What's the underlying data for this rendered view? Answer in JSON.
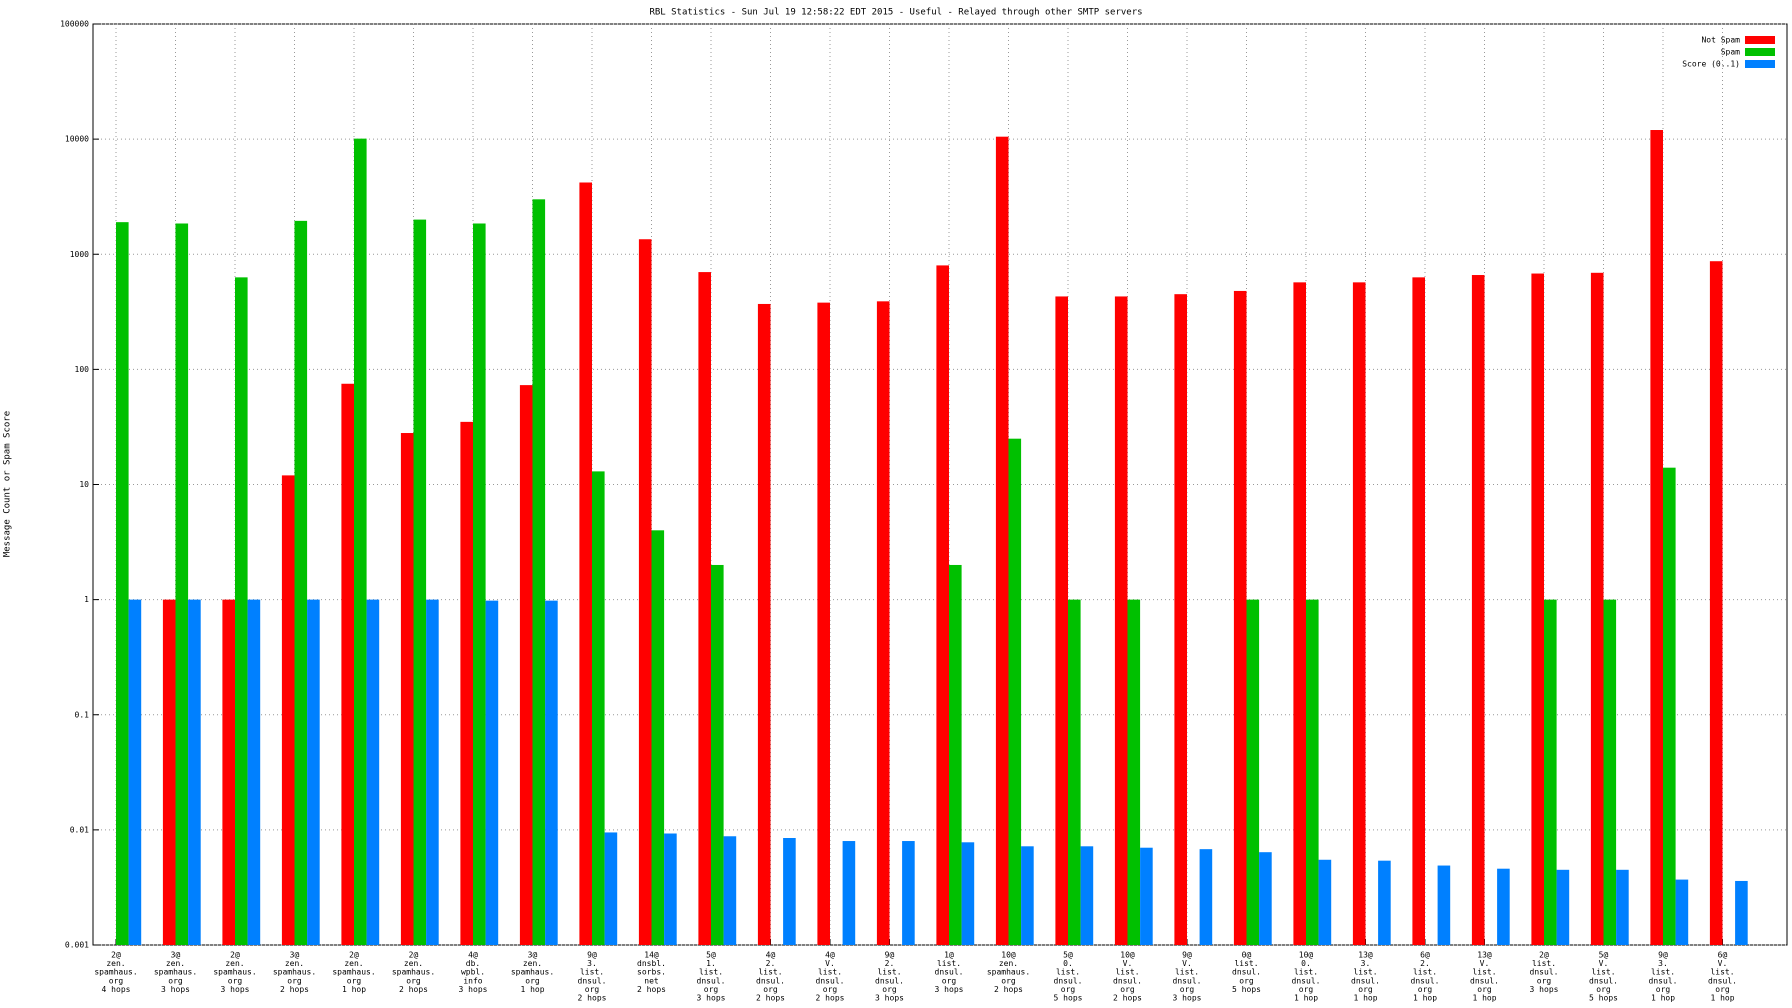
{
  "chart_data": {
    "type": "bar",
    "title": "RBL Statistics - Sun Jul 19 12:58:22 EDT 2015 - Useful - Relayed through other SMTP servers",
    "y_label": "Message Count or Spam Score",
    "log": true,
    "grid": true,
    "legend": "top-right",
    "ylim": [
      0.001,
      100000
    ],
    "yticks": [
      0.001,
      0.01,
      0.1,
      1,
      10,
      100,
      1000,
      10000,
      100000
    ],
    "categories": [
      [
        "2@",
        "zen.",
        "spamhaus.",
        "org",
        "4 hops"
      ],
      [
        "3@",
        "zen.",
        "spamhaus.",
        "org",
        "3 hops"
      ],
      [
        "2@",
        "zen.",
        "spamhaus.",
        "org",
        "3 hops"
      ],
      [
        "3@",
        "zen.",
        "spamhaus.",
        "org",
        "2 hops"
      ],
      [
        "2@",
        "zen.",
        "spamhaus.",
        "org",
        "1 hop"
      ],
      [
        "2@",
        "zen.",
        "spamhaus.",
        "org",
        "2 hops"
      ],
      [
        "4@",
        "db.",
        "wpbl.",
        "info",
        "3 hops"
      ],
      [
        "3@",
        "zen.",
        "spamhaus.",
        "org",
        "1 hop"
      ],
      [
        "9@",
        "3.",
        "list.",
        "dnsul.",
        "org",
        "2 hops"
      ],
      [
        "14@",
        "dnsbl.",
        "sorbs.",
        "net",
        "2 hops"
      ],
      [
        "5@",
        "1.",
        "list.",
        "dnsul.",
        "org",
        "3 hops"
      ],
      [
        "4@",
        "2.",
        "list.",
        "dnsul.",
        "org",
        "2 hops"
      ],
      [
        "4@",
        "V.",
        "list.",
        "dnsul.",
        "org",
        "2 hops"
      ],
      [
        "9@",
        "2.",
        "list.",
        "dnsul.",
        "org",
        "3 hops"
      ],
      [
        "1@",
        "list.",
        "dnsul.",
        "org",
        "3 hops"
      ],
      [
        "10@",
        "zen.",
        "spamhaus.",
        "org",
        "2 hops"
      ],
      [
        "5@",
        "0.",
        "list.",
        "dnsul.",
        "org",
        "5 hops"
      ],
      [
        "10@",
        "V.",
        "list.",
        "dnsul.",
        "org",
        "2 hops"
      ],
      [
        "9@",
        "V.",
        "list.",
        "dnsul.",
        "org",
        "3 hops"
      ],
      [
        "0@",
        "list.",
        "dnsul.",
        "org",
        "5 hops"
      ],
      [
        "10@",
        "0.",
        "list.",
        "dnsul.",
        "org",
        "1 hop"
      ],
      [
        "13@",
        "3.",
        "list.",
        "dnsul.",
        "org",
        "1 hop"
      ],
      [
        "6@",
        "2.",
        "list.",
        "dnsul.",
        "org",
        "1 hop"
      ],
      [
        "13@",
        "V.",
        "list.",
        "dnsul.",
        "org",
        "1 hop"
      ],
      [
        "2@",
        "list.",
        "dnsul.",
        "org",
        "3 hops"
      ],
      [
        "5@",
        "V.",
        "list.",
        "dnsul.",
        "org",
        "5 hops"
      ],
      [
        "9@",
        "3.",
        "list.",
        "dnsul.",
        "org",
        "1 hop"
      ],
      [
        "6@",
        "V.",
        "list.",
        "dnsul.",
        "org",
        "1 hop"
      ]
    ],
    "series": [
      {
        "name": "Not Spam",
        "color": "#ff0000",
        "values": [
          null,
          1,
          1,
          12,
          75,
          28,
          35,
          73,
          4200,
          1350,
          700,
          370,
          380,
          390,
          800,
          10500,
          430,
          430,
          450,
          480,
          570,
          570,
          630,
          660,
          680,
          690,
          12000,
          870
        ]
      },
      {
        "name": "Spam",
        "color": "#00c000",
        "values": [
          1900,
          1850,
          630,
          1950,
          10100,
          2000,
          1850,
          3000,
          13,
          4,
          2,
          null,
          null,
          null,
          2,
          25,
          1,
          1,
          null,
          1,
          1,
          null,
          null,
          null,
          1,
          1,
          14,
          null
        ]
      },
      {
        "name": "Score (0..1)",
        "color": "#0080ff",
        "values": [
          1,
          1,
          1,
          1,
          1,
          1,
          0.98,
          0.98,
          0.0095,
          0.0093,
          0.0088,
          0.0085,
          0.008,
          0.008,
          0.0078,
          0.0072,
          0.0072,
          0.007,
          0.0068,
          0.0064,
          0.0055,
          0.0054,
          0.0049,
          0.0046,
          0.0045,
          0.0045,
          0.0037,
          0.0036
        ]
      }
    ]
  }
}
